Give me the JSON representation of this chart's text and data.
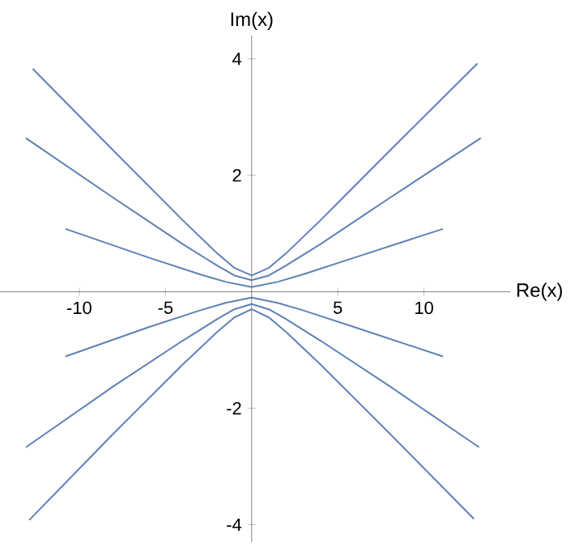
{
  "chart_data": {
    "type": "line",
    "xlabel": "Re(x)",
    "ylabel": "Im(x)",
    "xlim": [
      -14.6,
      15
    ],
    "ylim": [
      -4.3,
      4.4
    ],
    "xticks": [
      -10,
      -5,
      5,
      10
    ],
    "yticks": [
      -4,
      -2,
      2,
      4
    ],
    "marker": "none",
    "line_style": "solid",
    "series": [
      {
        "color": "#5e81b5",
        "x": [
          -12.7,
          -8,
          -4,
          -2,
          -1,
          0,
          1,
          2,
          4,
          8,
          13.1
        ],
        "values": [
          3.83,
          2.42,
          1.23,
          0.66,
          0.41,
          0.28,
          0.41,
          0.66,
          1.23,
          2.42,
          3.92
        ]
      },
      {
        "color": "#5e81b5",
        "x": [
          -13.1,
          -8,
          -4,
          -2,
          -1,
          0,
          1,
          2,
          4,
          8,
          13.3
        ],
        "values": [
          2.64,
          1.61,
          0.82,
          0.45,
          0.28,
          0.2,
          0.28,
          0.45,
          0.82,
          1.61,
          2.64
        ]
      },
      {
        "color": "#5e81b5",
        "x": [
          -10.8,
          -6,
          -3,
          -1.5,
          0,
          1.5,
          3,
          6,
          11.1
        ],
        "values": [
          1.08,
          0.59,
          0.3,
          0.17,
          0.08,
          0.17,
          0.3,
          0.59,
          1.08
        ]
      },
      {
        "color": "#5e81b5",
        "x": [
          -10.8,
          -6,
          -3,
          -1.5,
          0,
          1.5,
          3,
          6,
          11.1
        ],
        "values": [
          -1.11,
          -0.61,
          -0.32,
          -0.19,
          -0.1,
          -0.19,
          -0.32,
          -0.61,
          -1.11
        ]
      },
      {
        "color": "#5e81b5",
        "x": [
          -13.1,
          -8,
          -4,
          -2,
          -1,
          0,
          1,
          2,
          4,
          8,
          13.2
        ],
        "values": [
          -2.67,
          -1.62,
          -0.84,
          -0.47,
          -0.3,
          -0.21,
          -0.3,
          -0.47,
          -0.84,
          -1.62,
          -2.67
        ]
      },
      {
        "color": "#5e81b5",
        "x": [
          -12.9,
          -8,
          -4,
          -2,
          -1,
          0,
          1,
          2,
          4,
          8,
          12.9
        ],
        "values": [
          -3.92,
          -2.43,
          -1.25,
          -0.69,
          -0.44,
          -0.3,
          -0.44,
          -0.69,
          -1.25,
          -2.43,
          -3.9
        ]
      }
    ]
  }
}
